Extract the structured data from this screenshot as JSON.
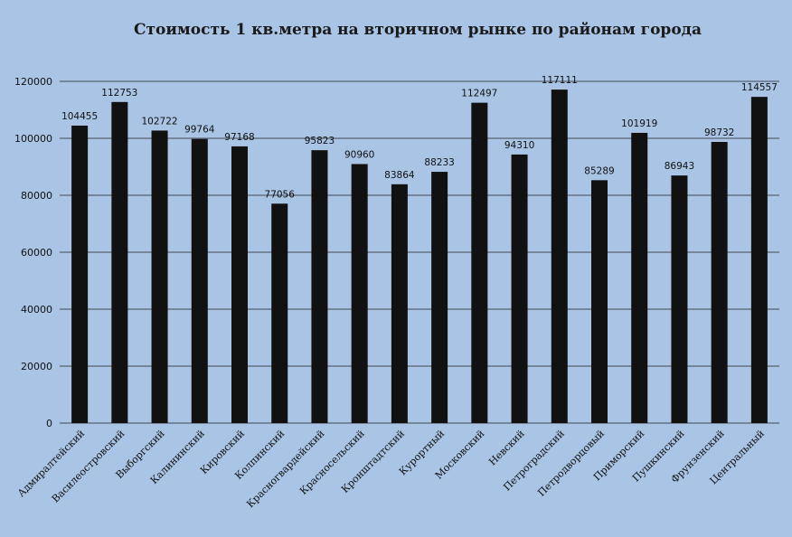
{
  "colors": {
    "background": "#a9c4e4",
    "bar": "#111111",
    "grid": "#222222",
    "text": "#111111"
  },
  "chart_data": {
    "type": "bar",
    "title": "Стоимость 1 кв.метра на вторичном рынке по районам города",
    "xlabel": "",
    "ylabel": "",
    "ylim": [
      0,
      120000
    ],
    "yticks": [
      0,
      20000,
      40000,
      60000,
      80000,
      100000,
      120000
    ],
    "grid": true,
    "legend": "none",
    "categories": [
      "Адмиралтейский",
      "Василеостровский",
      "Выборгский",
      "Калининский",
      "Кировский",
      "Колпинский",
      "Красногвардейский",
      "Красносельский",
      "Кронштадтский",
      "Курортный",
      "Московский",
      "Невский",
      "Петроградский",
      "Петродворцовый",
      "Приморский",
      "Пушкинский",
      "Фрунзенский",
      "Центральный"
    ],
    "values": [
      104455,
      112753,
      102722,
      99764,
      97168,
      77056,
      95823,
      90960,
      83864,
      88233,
      112497,
      94310,
      117111,
      85289,
      101919,
      86943,
      98732,
      114557
    ]
  }
}
